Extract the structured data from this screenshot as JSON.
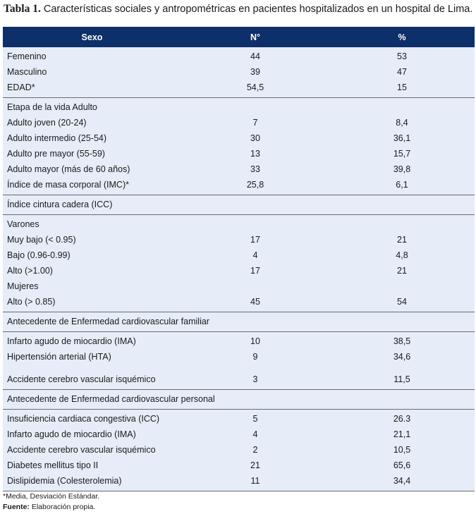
{
  "caption": {
    "label": "Tabla 1.",
    "text": "Características sociales y antropométricas en pacientes hospitalizados en un hospital de Lima."
  },
  "header": {
    "col1": "Sexo",
    "col2": "N°",
    "col3": "%"
  },
  "sections": [
    {
      "rows": [
        {
          "label": "Femenino",
          "n": "44",
          "pct": "53"
        },
        {
          "label": "Masculino",
          "n": "39",
          "pct": "47"
        },
        {
          "label": "EDAD*",
          "n": "54,5",
          "pct": "15"
        }
      ]
    },
    {
      "rows": [
        {
          "label": "Etapa de la vida Adulto",
          "n": "",
          "pct": ""
        },
        {
          "label": "Adulto joven (20-24)",
          "n": "7",
          "pct": "8,4"
        },
        {
          "label": "Adulto intermedio (25-54)",
          "n": "30",
          "pct": "36,1"
        },
        {
          "label": "Adulto pre mayor (55-59)",
          "n": "13",
          "pct": "15,7"
        },
        {
          "label": "Adulto mayor (más de 60 años)",
          "n": "33",
          "pct": "39,8"
        },
        {
          "label": "Índice de masa corporal (IMC)*",
          "n": "25,8",
          "pct": "6,1"
        }
      ]
    },
    {
      "rows": [
        {
          "label": "Índice cintura cadera (ICC)",
          "n": "",
          "pct": ""
        }
      ]
    },
    {
      "rows": [
        {
          "label": "Varones",
          "n": "",
          "pct": ""
        },
        {
          "label": "Muy bajo (< 0.95)",
          "n": "17",
          "pct": "21"
        },
        {
          "label": "Bajo (0.96-0.99)",
          "n": "4",
          "pct": "4,8"
        },
        {
          "label": "Alto (>1.00)",
          "n": "17",
          "pct": "21"
        },
        {
          "label": "Mujeres",
          "n": "",
          "pct": ""
        },
        {
          "label": "Alto (> 0.85)",
          "n": "45",
          "pct": "54"
        }
      ]
    },
    {
      "rows": [
        {
          "label": "Antecedente de Enfermedad cardiovascular familiar",
          "n": "",
          "pct": ""
        }
      ]
    },
    {
      "rows": [
        {
          "label": "Infarto agudo de miocardio (IMA)",
          "n": "10",
          "pct": "38,5"
        },
        {
          "label": "Hipertensión arterial (HTA)",
          "n": "9",
          "pct": "34,6"
        },
        {
          "label": "Accidente cerebro vascular isquémico",
          "n": "3",
          "pct": "11,5",
          "tall": true
        }
      ]
    },
    {
      "rows": [
        {
          "label": "Antecedente de Enfermedad cardiovascular personal",
          "n": "",
          "pct": ""
        }
      ]
    },
    {
      "rows": [
        {
          "label": "Insuficiencia cardiaca congestiva (ICC)",
          "n": "5",
          "pct": "26.3"
        },
        {
          "label": "Infarto agudo de miocardio (IMA)",
          "n": "4",
          "pct": "21,1"
        },
        {
          "label": "Accidente cerebro vascular isquémico",
          "n": "2",
          "pct": "10,5"
        },
        {
          "label": "Diabetes mellitus tipo II",
          "n": "21",
          "pct": "65,6"
        },
        {
          "label": "Dislipidemia (Colesterolemia)",
          "n": "11",
          "pct": "34,4"
        }
      ]
    }
  ],
  "notes": {
    "footnote": "*Media, Desviación Estándar.",
    "source_label": "Fuente:",
    "source_text": "Elaboración propia."
  },
  "colors": {
    "header_bg": "#0d2f6a",
    "row_bg": "#e6edf8"
  }
}
